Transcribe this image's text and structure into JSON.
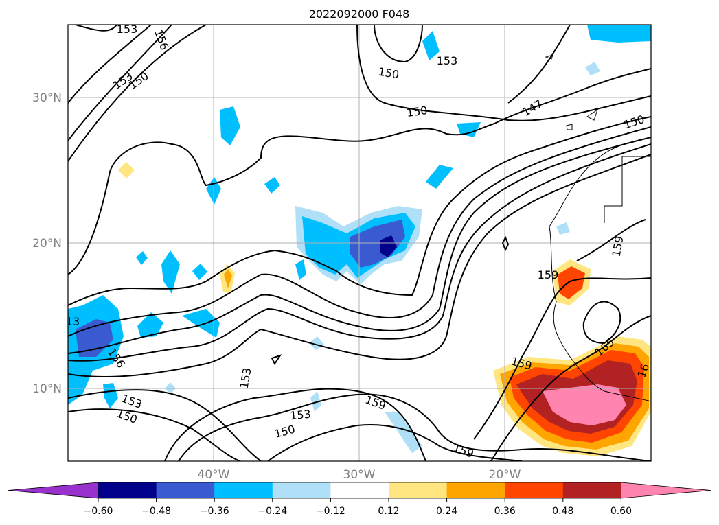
{
  "title": "2022092000 F048",
  "map": {
    "lat_labels": [
      "30°N",
      "20°N",
      "10°N"
    ],
    "lon_labels": [
      "40°W",
      "30°W",
      "20°W"
    ],
    "contour_labels": [
      "153",
      "156",
      "153",
      "150",
      "150",
      "153",
      "150",
      "147",
      "150",
      "159",
      "159",
      "165",
      "16",
      "159",
      "159",
      "153",
      "150",
      "159",
      "153",
      "156",
      "153",
      "150",
      "156",
      "13"
    ],
    "colors": {
      "land_line": "#000000",
      "grid": "#b0b0b0",
      "neg_strong": "#00008b",
      "neg_mid": "#3a5bd0",
      "neg_light": "#00bfff",
      "neg_pale": "#b0e0f8",
      "pos_pale": "#ffe680",
      "pos_light": "#ffa500",
      "pos_mid": "#ff4500",
      "pos_strong": "#b22222",
      "pos_max": "#ff85b0"
    }
  },
  "colorbar": {
    "ticks": [
      "−0.60",
      "−0.48",
      "−0.36",
      "−0.24",
      "−0.12",
      "0.12",
      "0.24",
      "0.36",
      "0.48",
      "0.60"
    ],
    "colors": [
      "#9932cc",
      "#00008b",
      "#3a5bd0",
      "#00bfff",
      "#b0e0f8",
      "#ffffff",
      "#ffe680",
      "#ffa500",
      "#ff4500",
      "#b22222",
      "#ff85b0"
    ]
  }
}
